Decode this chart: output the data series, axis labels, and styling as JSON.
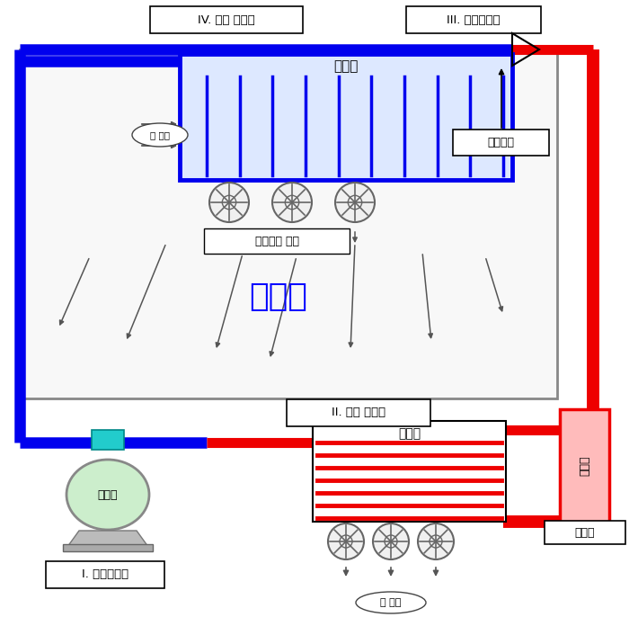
{
  "bg_color": "#ffffff",
  "storage_room_label": "저장실",
  "storage_room_label_color": "#0000ff",
  "cycle_labels": {
    "IV": "IV. 증발 사이클",
    "III": "III. 팽창사이클",
    "II": "II. 응축 사이클",
    "I": "I. 압축사이클"
  },
  "component_labels": {
    "cooler": "냉각기",
    "heat_abs": "열 흡수",
    "cold_air": "차가워진 공기",
    "condenser": "응축기",
    "compressor": "압축기",
    "heat_release": "열 방출",
    "expansion_valve": "팽창밸브",
    "refrigerant": "냉매역",
    "refrigerant_label": "냉매역"
  },
  "colors": {
    "blue": "#0000ee",
    "red": "#ee0000",
    "storage_bg": "#f8f8f8",
    "storage_border": "#888888",
    "cooler_bg": "#dde8ff",
    "cooler_border": "#0000ee",
    "compressor_fill": "#cceecc",
    "condenser_fill": "#ffffff",
    "refrigerant_fill": "#ffbbbb",
    "cyan_cap": "#22cccc",
    "fan_color": "#666666",
    "label_bg": "#ffffff",
    "label_border": "#000000",
    "arrow_color": "#333333"
  }
}
